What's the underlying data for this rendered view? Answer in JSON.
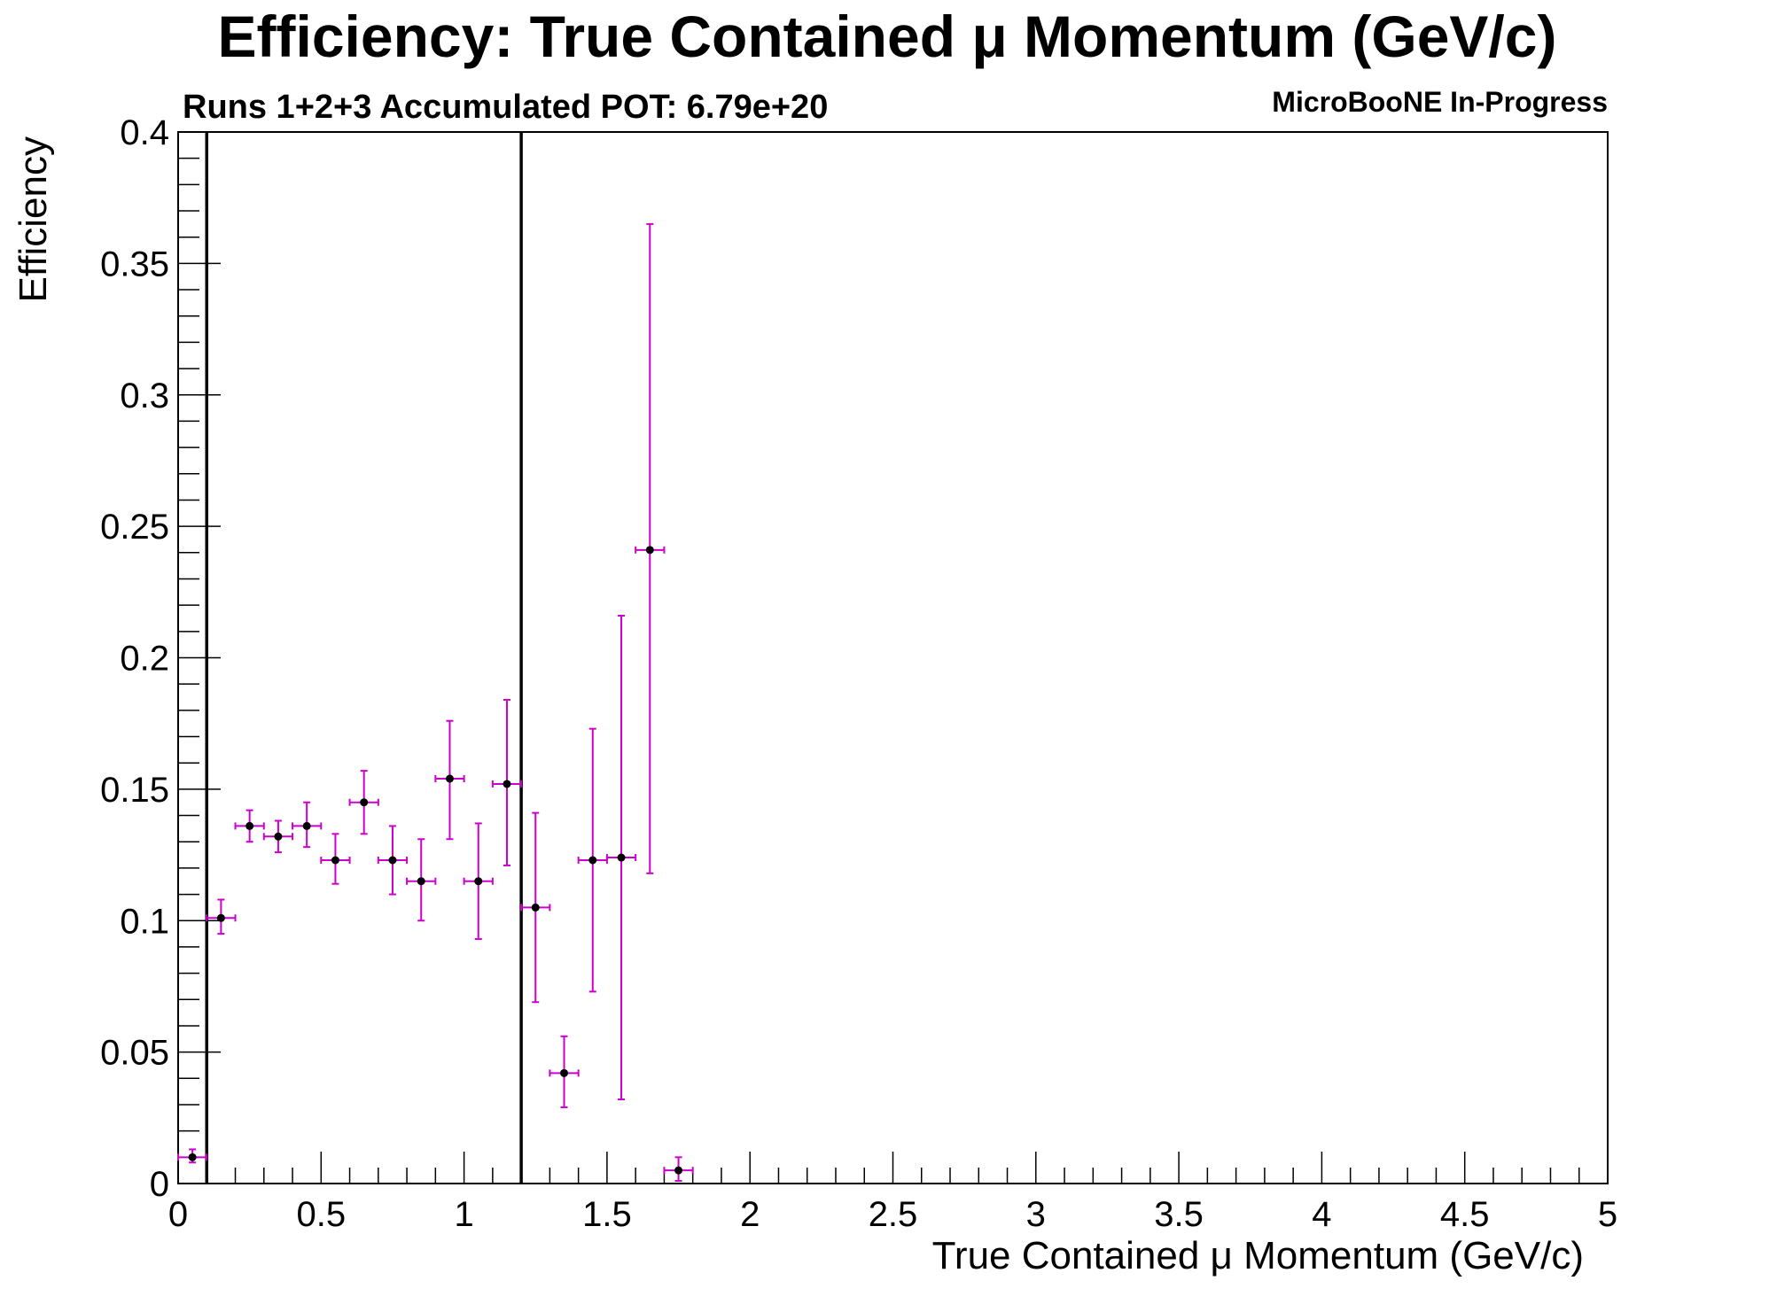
{
  "chart_data": {
    "type": "scatter",
    "title": "Efficiency: True Contained  μ Momentum (GeV/c)",
    "subtitle": "Runs 1+2+3 Accumulated POT: 6.79e+20",
    "tag": "MicroBooNE In-Progress",
    "xlabel": "True Contained  μ Momentum (GeV/c)",
    "ylabel": "Efficiency",
    "xlim": [
      0,
      5
    ],
    "ylim": [
      0,
      0.4
    ],
    "x_ticks": [
      {
        "value": 0,
        "label": "0"
      },
      {
        "value": 0.5,
        "label": "0.5"
      },
      {
        "value": 1,
        "label": "1"
      },
      {
        "value": 1.5,
        "label": "1.5"
      },
      {
        "value": 2,
        "label": "2"
      },
      {
        "value": 2.5,
        "label": "2.5"
      },
      {
        "value": 3,
        "label": "3"
      },
      {
        "value": 3.5,
        "label": "3.5"
      },
      {
        "value": 4,
        "label": "4"
      },
      {
        "value": 4.5,
        "label": "4.5"
      },
      {
        "value": 5,
        "label": "5"
      }
    ],
    "y_ticks": [
      {
        "value": 0,
        "label": "0"
      },
      {
        "value": 0.05,
        "label": "0.05"
      },
      {
        "value": 0.1,
        "label": "0.1"
      },
      {
        "value": 0.15,
        "label": "0.15"
      },
      {
        "value": 0.2,
        "label": "0.2"
      },
      {
        "value": 0.25,
        "label": "0.25"
      },
      {
        "value": 0.3,
        "label": "0.3"
      },
      {
        "value": 0.35,
        "label": "0.35"
      },
      {
        "value": 0.4,
        "label": "0.4"
      }
    ],
    "vertical_lines": [
      0.1,
      1.2
    ],
    "series": [
      {
        "marker_color": "#000000",
        "error_color": "#cc00cc",
        "points": [
          {
            "x": 0.05,
            "x_err": 0.05,
            "y": 0.01,
            "y_low": 0.008,
            "y_high": 0.013
          },
          {
            "x": 0.15,
            "x_err": 0.05,
            "y": 0.101,
            "y_low": 0.095,
            "y_high": 0.108
          },
          {
            "x": 0.25,
            "x_err": 0.05,
            "y": 0.136,
            "y_low": 0.13,
            "y_high": 0.142
          },
          {
            "x": 0.35,
            "x_err": 0.05,
            "y": 0.132,
            "y_low": 0.126,
            "y_high": 0.138
          },
          {
            "x": 0.45,
            "x_err": 0.05,
            "y": 0.136,
            "y_low": 0.128,
            "y_high": 0.145
          },
          {
            "x": 0.55,
            "x_err": 0.05,
            "y": 0.123,
            "y_low": 0.114,
            "y_high": 0.133
          },
          {
            "x": 0.65,
            "x_err": 0.05,
            "y": 0.145,
            "y_low": 0.133,
            "y_high": 0.157
          },
          {
            "x": 0.75,
            "x_err": 0.05,
            "y": 0.123,
            "y_low": 0.11,
            "y_high": 0.136
          },
          {
            "x": 0.85,
            "x_err": 0.05,
            "y": 0.115,
            "y_low": 0.1,
            "y_high": 0.131
          },
          {
            "x": 0.95,
            "x_err": 0.05,
            "y": 0.154,
            "y_low": 0.131,
            "y_high": 0.176
          },
          {
            "x": 1.05,
            "x_err": 0.05,
            "y": 0.115,
            "y_low": 0.093,
            "y_high": 0.137
          },
          {
            "x": 1.15,
            "x_err": 0.05,
            "y": 0.152,
            "y_low": 0.121,
            "y_high": 0.184
          },
          {
            "x": 1.25,
            "x_err": 0.05,
            "y": 0.105,
            "y_low": 0.069,
            "y_high": 0.141
          },
          {
            "x": 1.35,
            "x_err": 0.05,
            "y": 0.042,
            "y_low": 0.029,
            "y_high": 0.056
          },
          {
            "x": 1.45,
            "x_err": 0.05,
            "y": 0.123,
            "y_low": 0.073,
            "y_high": 0.173
          },
          {
            "x": 1.55,
            "x_err": 0.05,
            "y": 0.124,
            "y_low": 0.032,
            "y_high": 0.216
          },
          {
            "x": 1.65,
            "x_err": 0.05,
            "y": 0.241,
            "y_low": 0.118,
            "y_high": 0.365
          },
          {
            "x": 1.75,
            "x_err": 0.05,
            "y": 0.005,
            "y_low": 0.001,
            "y_high": 0.01
          }
        ]
      }
    ],
    "grid": false,
    "legend": "none"
  }
}
